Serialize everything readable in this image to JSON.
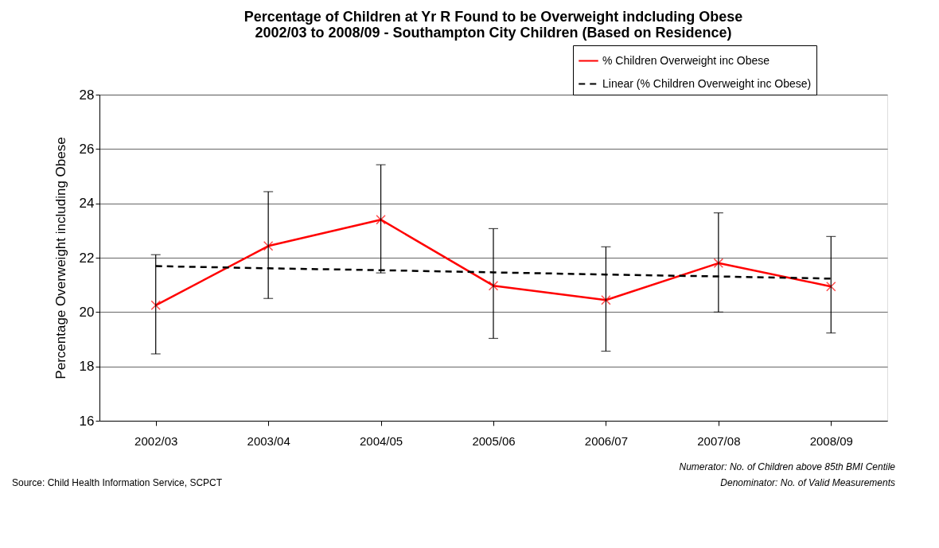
{
  "chart_data": {
    "type": "line",
    "title": [
      "Percentage of Children at Yr R Found to be Overweight indcluding Obese",
      "2002/03 to 2008/09 - Southampton City Children (Based on Residence)"
    ],
    "ylabel": "Percentage Overweight including Obese",
    "categories": [
      "2002/03",
      "2003/04",
      "2004/05",
      "2005/06",
      "2006/07",
      "2007/08",
      "2008/09"
    ],
    "series": [
      {
        "name": "% Children Overweight inc Obese",
        "color": "#ff0000",
        "marker": "cross",
        "line_style": "solid",
        "values": [
          20.25,
          22.43,
          23.4,
          20.97,
          20.44,
          21.8,
          20.94
        ],
        "errors": [
          [
            18.46,
            22.11
          ],
          [
            20.5,
            24.43
          ],
          [
            21.44,
            25.42
          ],
          [
            19.03,
            23.07
          ],
          [
            18.56,
            22.4
          ],
          [
            20.0,
            23.65
          ],
          [
            19.23,
            22.78
          ]
        ]
      },
      {
        "name": "Linear (% Children Overweight inc Obese)",
        "color": "#000000",
        "marker": "none",
        "line_style": "dashed",
        "values": [
          21.69,
          21.61,
          21.54,
          21.46,
          21.38,
          21.31,
          21.23
        ]
      }
    ],
    "ylim": [
      16,
      28
    ],
    "yticks": [
      16,
      18,
      20,
      22,
      24,
      26,
      28
    ],
    "grid": "y",
    "legend": "top right",
    "annotations": [
      "Source: Child Health Information Service, SCPCT",
      "Numerator: No. of Children above  85th BMI Centile",
      "Denominator: No. of Valid Measurements"
    ]
  }
}
